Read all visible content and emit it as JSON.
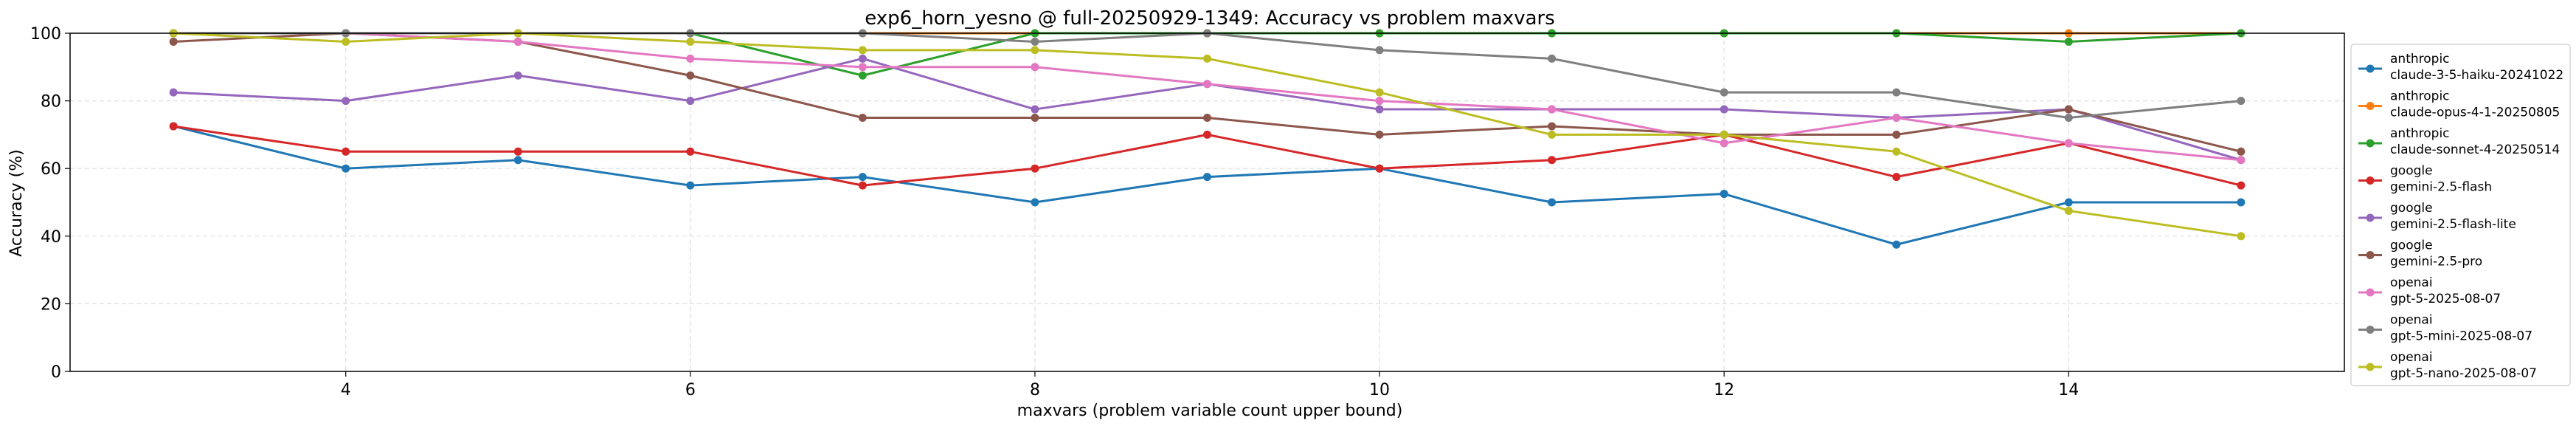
{
  "chart_data": {
    "type": "line",
    "title": "exp6_horn_yesno @ full-20250929-1349: Accuracy vs problem maxvars",
    "xlabel": "maxvars (problem variable count upper bound)",
    "ylabel": "Accuracy (%)",
    "xlim": [
      2.4,
      15.6
    ],
    "ylim": [
      0,
      100
    ],
    "xticks": [
      4,
      6,
      8,
      10,
      12,
      14
    ],
    "yticks": [
      0,
      20,
      40,
      60,
      80,
      100
    ],
    "grid": true,
    "legend_position": "right",
    "x": [
      3,
      4,
      5,
      6,
      7,
      8,
      9,
      10,
      11,
      12,
      13,
      14,
      15
    ],
    "series": [
      {
        "provider": "anthropic",
        "name": "claude-3-5-haiku-20241022",
        "color": "#1f77b4",
        "values": [
          72.5,
          60,
          62.5,
          55,
          57.5,
          50,
          57.5,
          60,
          50,
          52.5,
          37.5,
          50,
          50
        ]
      },
      {
        "provider": "anthropic",
        "name": "claude-opus-4-1-20250805",
        "color": "#ff7f0e",
        "values": [
          100,
          100,
          100,
          100,
          100,
          100,
          100,
          100,
          100,
          100,
          100,
          100,
          100
        ]
      },
      {
        "provider": "anthropic",
        "name": "claude-sonnet-4-20250514",
        "color": "#2ca02c",
        "values": [
          100,
          100,
          100,
          100,
          87.5,
          100,
          100,
          100,
          100,
          100,
          100,
          97.5,
          100
        ]
      },
      {
        "provider": "google",
        "name": "gemini-2.5-flash",
        "color": "#d62728",
        "values": [
          72.5,
          65,
          65,
          65,
          55,
          60,
          70,
          60,
          62.5,
          70,
          57.5,
          67.5,
          55
        ]
      },
      {
        "provider": "google",
        "name": "gemini-2.5-flash-lite",
        "color": "#9467bd",
        "values": [
          82.5,
          80,
          87.5,
          80,
          92.5,
          77.5,
          85,
          77.5,
          77.5,
          77.5,
          75,
          77.5,
          62.5
        ]
      },
      {
        "provider": "google",
        "name": "gemini-2.5-pro",
        "color": "#8c564b",
        "values": [
          97.5,
          100,
          97.5,
          87.5,
          75,
          75,
          75,
          70,
          72.5,
          70,
          70,
          77.5,
          65
        ]
      },
      {
        "provider": "openai",
        "name": "gpt-5-2025-08-07",
        "color": "#e377c2",
        "values": [
          100,
          100,
          97.5,
          92.5,
          90,
          90,
          85,
          80,
          77.5,
          67.5,
          75,
          67.5,
          62.5
        ]
      },
      {
        "provider": "openai",
        "name": "gpt-5-mini-2025-08-07",
        "color": "#7f7f7f",
        "values": [
          100,
          100,
          100,
          100,
          100,
          97.5,
          100,
          95,
          92.5,
          82.5,
          82.5,
          75,
          80
        ]
      },
      {
        "provider": "openai",
        "name": "gpt-5-nano-2025-08-07",
        "color": "#bcbd22",
        "values": [
          100,
          97.5,
          100,
          97.5,
          95,
          95,
          92.5,
          82.5,
          70,
          70,
          65,
          47.5,
          40
        ]
      }
    ]
  }
}
